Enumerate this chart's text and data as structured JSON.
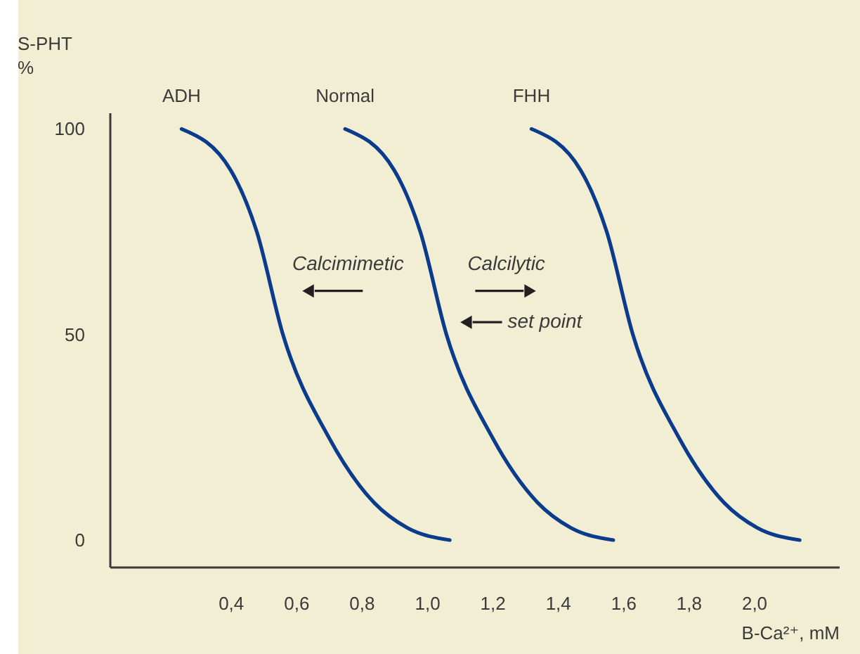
{
  "chart_data": {
    "type": "line",
    "ylabel": "S-PHT\n%",
    "xlabel": "B-Ca²⁺, mM",
    "xlim": [
      0.03,
      2.26
    ],
    "xticks": [
      {
        "value": 0.4,
        "label": "0,4"
      },
      {
        "value": 0.6,
        "label": "0,6"
      },
      {
        "value": 0.8,
        "label": "0,8"
      },
      {
        "value": 1.0,
        "label": "1,0"
      },
      {
        "value": 1.2,
        "label": "1,2"
      },
      {
        "value": 1.4,
        "label": "1,4"
      },
      {
        "value": 1.6,
        "label": "1,6"
      },
      {
        "value": 1.8,
        "label": "1,8"
      },
      {
        "value": 2.0,
        "label": "2,0"
      }
    ],
    "ylim": [
      -6.5,
      104
    ],
    "yticks": [
      0,
      50,
      100
    ],
    "grid": false,
    "legend": false,
    "marker": "none",
    "line_style": "solid",
    "series": [
      {
        "name": "ADH",
        "color": "#0b3c8c",
        "x": [
          0.25,
          0.4,
          0.48,
          0.56,
          0.7,
          0.84,
          0.94,
          1.07
        ],
        "values": [
          100,
          90,
          75,
          50,
          25,
          9,
          3,
          0
        ]
      },
      {
        "name": "Normal",
        "color": "#0b3c8c",
        "x": [
          0.75,
          0.9,
          0.98,
          1.06,
          1.2,
          1.34,
          1.44,
          1.57
        ],
        "values": [
          100,
          90,
          75,
          50,
          25,
          9,
          3,
          0
        ]
      },
      {
        "name": "FHH",
        "color": "#0b3c8c",
        "x": [
          1.32,
          1.47,
          1.55,
          1.63,
          1.77,
          1.91,
          2.01,
          2.14
        ],
        "values": [
          100,
          90,
          75,
          50,
          25,
          9,
          3,
          0
        ]
      }
    ],
    "annotations": [
      "Calcimimetic",
      "Calcilytic",
      {
        "text": "set point",
        "x": 1.12,
        "y": 53
      }
    ]
  }
}
